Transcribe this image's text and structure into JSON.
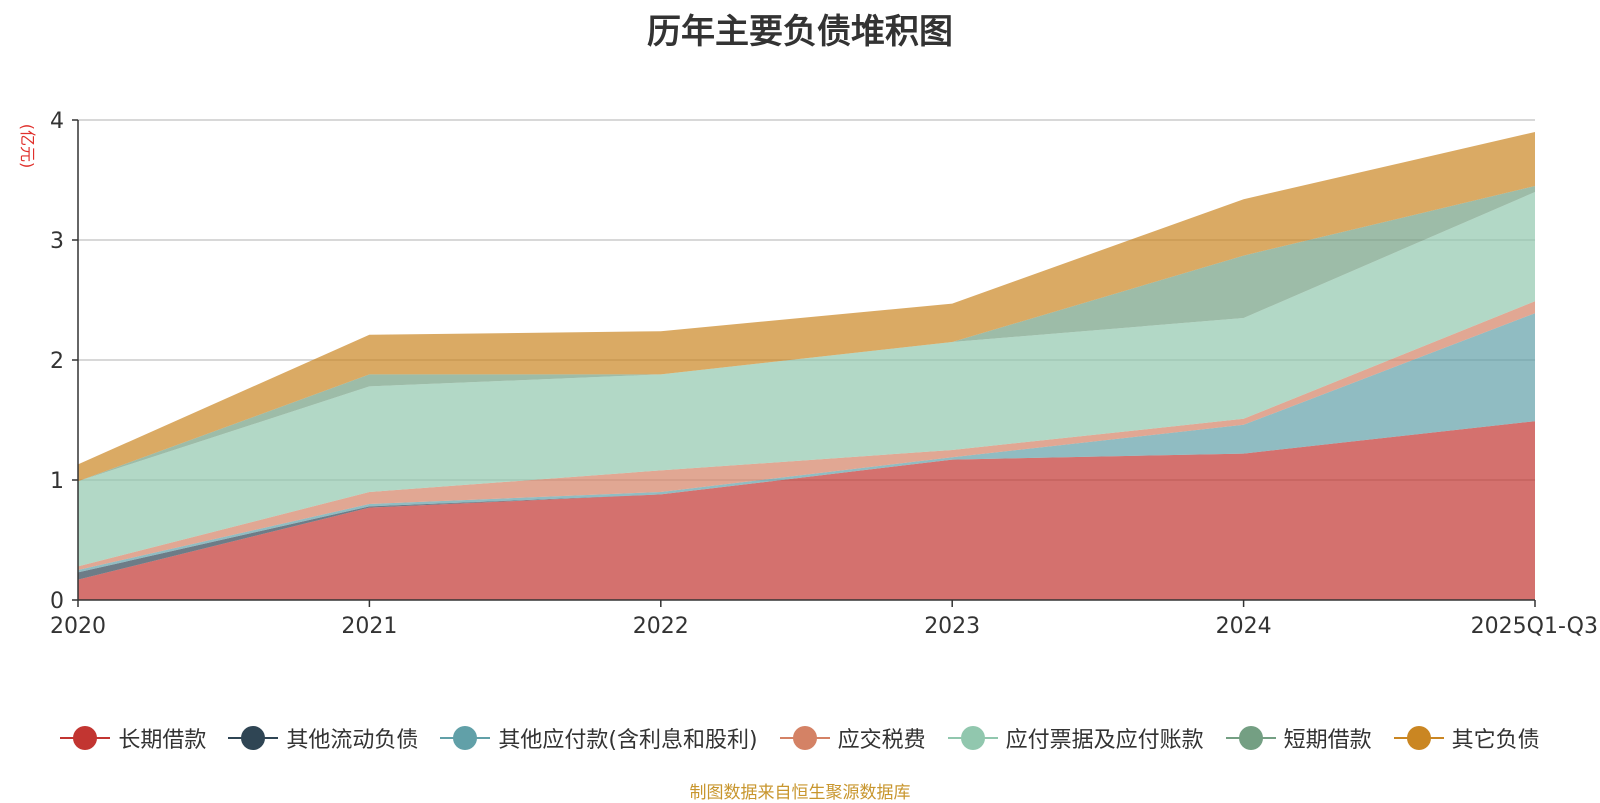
{
  "chart_data": {
    "type": "area",
    "stacked": true,
    "title": "历年主要负债堆积图",
    "ylabel": "(亿元)",
    "ylim": [
      0,
      4
    ],
    "yticks": [
      0,
      1,
      2,
      3,
      4
    ],
    "grid": true,
    "legend_position": "bottom",
    "categories": [
      "2020",
      "2021",
      "2022",
      "2023",
      "2024",
      "2025Q1-Q3"
    ],
    "series": [
      {
        "name": "长期借款",
        "color": "#c23531",
        "values": [
          0.17,
          0.77,
          0.88,
          1.17,
          1.22,
          1.49
        ]
      },
      {
        "name": "其他流动负债",
        "color": "#2f4554",
        "values": [
          0.06,
          0.01,
          0.0,
          0.0,
          0.0,
          0.0
        ]
      },
      {
        "name": "其他应付款(含利息和股利)",
        "color": "#61a0a8",
        "values": [
          0.02,
          0.02,
          0.02,
          0.02,
          0.24,
          0.9
        ]
      },
      {
        "name": "应交税费",
        "color": "#d48265",
        "values": [
          0.03,
          0.1,
          0.18,
          0.06,
          0.05,
          0.1
        ]
      },
      {
        "name": "应付票据及应付账款",
        "color": "#91c7ae",
        "values": [
          0.71,
          0.88,
          0.8,
          0.9,
          0.84,
          0.91
        ]
      },
      {
        "name": "短期借款",
        "color": "#749f83",
        "values": [
          0.0,
          0.1,
          0.0,
          0.0,
          0.52,
          0.05
        ]
      },
      {
        "name": "其它负债",
        "color": "#ca8622",
        "values": [
          0.14,
          0.33,
          0.36,
          0.32,
          0.47,
          0.45
        ]
      }
    ]
  },
  "source_note": "制图数据来自恒生聚源数据库"
}
